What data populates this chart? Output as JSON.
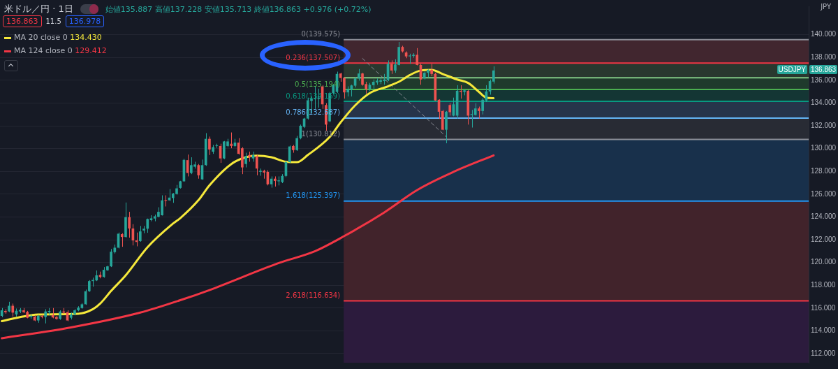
{
  "chart_data": {
    "type": "candlestick",
    "title": "米ドル／円 · 1日",
    "subtitle": "始値135.887 高値137.228 安値135.713 終値136.863 +0.976 (+0.72%)",
    "ylabel": "JPY",
    "annotations": [
      "136.863",
      "11.5",
      "136.978",
      "USDJPY",
      "136.863",
      "134.430",
      "129.412"
    ],
    "categories": [
      null,
      null,
      null,
      null,
      null,
      null,
      null,
      null,
      null,
      null,
      null,
      null,
      null,
      null,
      null,
      null,
      null,
      null,
      null,
      null,
      null,
      null,
      null,
      null,
      null,
      null,
      null,
      null,
      null,
      null,
      null,
      null,
      null,
      null,
      null,
      null,
      null,
      null,
      null,
      null,
      null,
      null,
      null,
      null,
      null,
      null,
      null,
      null,
      null,
      null,
      null,
      null,
      null,
      null,
      null,
      null,
      null,
      null,
      null,
      null,
      null,
      null,
      null,
      null,
      null,
      null,
      null,
      null,
      null,
      null,
      null,
      null,
      null,
      null,
      null,
      null,
      null,
      null,
      null,
      null,
      null,
      null,
      null,
      null,
      null,
      null,
      null,
      null,
      null,
      null,
      null,
      null,
      null,
      null,
      null,
      null,
      null,
      null,
      null,
      null,
      null,
      null,
      null,
      null,
      null,
      null,
      null,
      null,
      null,
      null,
      null,
      null,
      null,
      null,
      null,
      null,
      null,
      null,
      null,
      null,
      null,
      null,
      null,
      null,
      null,
      null,
      null,
      null,
      null,
      null,
      null,
      null,
      null,
      null,
      null,
      null,
      null,
      null,
      null,
      null,
      null,
      null,
      null,
      null,
      null,
      null,
      null,
      null,
      null,
      null,
      null,
      null,
      null,
      null,
      null,
      null,
      null,
      null,
      null,
      null,
      null,
      null,
      null,
      null,
      null,
      null,
      null,
      null,
      null,
      null,
      null,
      null,
      null,
      null,
      null,
      null,
      null,
      null,
      null,
      null,
      null,
      null,
      null,
      null,
      null,
      null,
      null,
      null,
      null,
      null,
      null,
      null,
      null,
      null,
      null,
      null,
      null,
      null,
      null,
      null,
      null,
      null,
      null,
      null,
      null,
      null,
      null,
      null,
      null,
      null,
      null,
      null,
      null,
      null,
      null,
      null,
      null,
      null,
      null,
      null,
      null,
      null
    ],
    "ohlc": [
      [
        115.31,
        116.0,
        115.2,
        115.8
      ],
      [
        115.74,
        115.9,
        115.5,
        115.64
      ],
      [
        115.7,
        116.55,
        115.64,
        116.2
      ],
      [
        116.2,
        116.39,
        115.25,
        115.6
      ],
      [
        115.44,
        115.96,
        115.25,
        115.76
      ],
      [
        115.7,
        116.0,
        115.56,
        115.84
      ],
      [
        115.8,
        116.0,
        115.56,
        115.64
      ],
      [
        115.66,
        115.75,
        115.1,
        115.15
      ],
      [
        115.21,
        115.44,
        115.05,
        115.31
      ],
      [
        115.25,
        115.35,
        114.85,
        114.91
      ],
      [
        114.91,
        115.4,
        114.71,
        115.31
      ],
      [
        115.31,
        115.4,
        115.1,
        115.21
      ],
      [
        115.21,
        115.9,
        114.65,
        115.7
      ],
      [
        115.64,
        116.0,
        115.4,
        115.74
      ],
      [
        115.4,
        116.0,
        115.1,
        115.17
      ],
      [
        115.21,
        115.31,
        114.97,
        115.05
      ],
      [
        115.05,
        115.8,
        114.97,
        115.7
      ],
      [
        115.7,
        116.0,
        115.5,
        115.6
      ],
      [
        115.64,
        115.8,
        114.85,
        114.91
      ],
      [
        115.15,
        115.6,
        115.0,
        115.44
      ],
      [
        115.44,
        115.9,
        115.36,
        115.8
      ],
      [
        115.8,
        116.16,
        115.72,
        116.04
      ],
      [
        116.0,
        116.43,
        115.94,
        116.33
      ],
      [
        116.33,
        117.62,
        116.28,
        117.48
      ],
      [
        117.48,
        118.45,
        117.42,
        118.37
      ],
      [
        118.37,
        118.67,
        117.88,
        118.47
      ],
      [
        118.43,
        119.3,
        118.37,
        118.87
      ],
      [
        118.91,
        119.2,
        118.61,
        118.73
      ],
      [
        118.73,
        119.6,
        118.67,
        119.36
      ],
      [
        119.32,
        119.72,
        119.26,
        119.66
      ],
      [
        119.66,
        121.19,
        119.6,
        120.95
      ],
      [
        120.91,
        121.58,
        120.79,
        121.3
      ],
      [
        121.3,
        122.63,
        121.24,
        122.53
      ],
      [
        122.49,
        122.57,
        121.38,
        122.24
      ],
      [
        122.24,
        125.27,
        122.18,
        123.98
      ],
      [
        123.98,
        124.45,
        122.18,
        122.99
      ],
      [
        122.99,
        123.37,
        121.5,
        121.94
      ],
      [
        121.94,
        122.63,
        121.42,
        121.8
      ],
      [
        121.88,
        123.21,
        121.82,
        122.73
      ],
      [
        122.81,
        123.21,
        122.57,
        122.97
      ],
      [
        122.97,
        123.86,
        122.61,
        123.82
      ],
      [
        123.72,
        124.15,
        123.62,
        123.88
      ],
      [
        123.86,
        124.21,
        123.62,
        124.06
      ],
      [
        124.02,
        124.85,
        123.96,
        124.45
      ],
      [
        124.15,
        125.9,
        124.12,
        125.46
      ],
      [
        125.48,
        125.9,
        124.92,
        125.42
      ],
      [
        125.46,
        126.45,
        125.4,
        125.7
      ],
      [
        125.66,
        126.1,
        125.24,
        126.06
      ],
      [
        126.02,
        126.81,
        125.96,
        126.51
      ],
      [
        126.55,
        127.17,
        126.49,
        127.13
      ],
      [
        127.13,
        129.11,
        127.09,
        129.01
      ],
      [
        128.99,
        129.48,
        127.56,
        127.86
      ],
      [
        127.86,
        129.24,
        127.76,
        128.55
      ],
      [
        128.41,
        128.85,
        128.25,
        128.61
      ],
      [
        128.55,
        128.65,
        127.36,
        127.66
      ],
      [
        127.3,
        129.04,
        127.26,
        128.55
      ],
      [
        128.55,
        131.36,
        128.49,
        130.86
      ],
      [
        130.86,
        131.06,
        129.44,
        129.93
      ],
      [
        129.73,
        130.33,
        129.54,
        130.13
      ],
      [
        130.23,
        130.43,
        130.07,
        130.29
      ],
      [
        130.23,
        130.43,
        128.75,
        129.14
      ],
      [
        129.14,
        130.67,
        129.08,
        130.63
      ],
      [
        130.23,
        130.86,
        130.13,
        130.63
      ],
      [
        130.43,
        131.42,
        130.03,
        130.23
      ],
      [
        130.23,
        130.86,
        130.13,
        130.53
      ],
      [
        130.53,
        130.92,
        129.48,
        129.54
      ],
      [
        130.03,
        130.13,
        127.76,
        128.35
      ],
      [
        128.65,
        129.64,
        128.35,
        129.34
      ],
      [
        129.44,
        129.74,
        128.85,
        129.24
      ],
      [
        129.14,
        129.74,
        128.85,
        129.44
      ],
      [
        129.34,
        129.44,
        127.66,
        128.25
      ],
      [
        127.96,
        128.25,
        127.62,
        128.06
      ],
      [
        128.06,
        128.15,
        127.36,
        127.9
      ],
      [
        127.96,
        128.1,
        126.77,
        126.87
      ],
      [
        126.87,
        127.56,
        126.57,
        127.36
      ],
      [
        127.36,
        127.56,
        126.67,
        127.16
      ],
      [
        127.13,
        127.56,
        126.77,
        127.21
      ],
      [
        127.07,
        127.76,
        126.97,
        127.6
      ],
      [
        127.6,
        128.95,
        127.5,
        128.81
      ],
      [
        128.81,
        130.27,
        128.75,
        130.19
      ],
      [
        130.23,
        130.33,
        129.64,
        129.87
      ],
      [
        129.87,
        131.12,
        129.8,
        130.92
      ],
      [
        130.92,
        132.11,
        130.82,
        132.01
      ],
      [
        131.91,
        132.7,
        131.81,
        132.64
      ],
      [
        132.64,
        134.48,
        132.56,
        134.25
      ],
      [
        134.19,
        134.58,
        133.1,
        134.38
      ],
      [
        134.34,
        135.47,
        133.49,
        134.42
      ],
      [
        134.38,
        135.27,
        133.59,
        134.48
      ],
      [
        135.47,
        135.57,
        133.49,
        133.89
      ],
      [
        133.83,
        133.99,
        131.58,
        132.11
      ],
      [
        132.4,
        134.98,
        132.31,
        134.88
      ],
      [
        134.88,
        135.67,
        134.78,
        135.57
      ],
      [
        134.98,
        136.76,
        134.88,
        136.56
      ],
      [
        136.6,
        136.66,
        135.87,
        136.2
      ],
      [
        136.2,
        136.26,
        134.39,
        134.94
      ],
      [
        134.94,
        135.47,
        134.58,
        135.22
      ],
      [
        135.18,
        135.61,
        134.58,
        135.55
      ],
      [
        135.53,
        136.26,
        135.37,
        136.16
      ],
      [
        136.16,
        136.99,
        135.97,
        136.6
      ],
      [
        136.6,
        136.66,
        135.53,
        135.61
      ],
      [
        135.67,
        135.87,
        134.82,
        135.22
      ],
      [
        135.22,
        135.77,
        135.08,
        135.61
      ],
      [
        135.57,
        136.07,
        135.27,
        135.87
      ],
      [
        135.81,
        136.16,
        135.61,
        135.97
      ],
      [
        135.87,
        136.26,
        135.67,
        136.01
      ],
      [
        135.93,
        136.56,
        135.61,
        136.07
      ],
      [
        136.01,
        137.75,
        135.93,
        137.45
      ],
      [
        137.45,
        137.75,
        136.56,
        136.86
      ],
      [
        136.86,
        137.84,
        136.66,
        137.39
      ],
      [
        137.35,
        139.37,
        137.31,
        138.93
      ],
      [
        138.93,
        139.03,
        138.44,
        138.54
      ],
      [
        138.44,
        138.54,
        137.94,
        138.1
      ],
      [
        138.1,
        138.34,
        137.45,
        138.18
      ],
      [
        138.14,
        138.38,
        137.98,
        138.24
      ],
      [
        138.24,
        138.83,
        137.31,
        137.35
      ],
      [
        137.35,
        137.45,
        135.61,
        136.07
      ],
      [
        136.16,
        136.76,
        136.07,
        136.66
      ],
      [
        136.66,
        136.96,
        136.26,
        136.92
      ],
      [
        136.92,
        137.45,
        136.36,
        136.56
      ],
      [
        136.56,
        136.66,
        134.19,
        134.23
      ],
      [
        134.29,
        134.33,
        132.61,
        133.24
      ],
      [
        133.3,
        133.4,
        131.62,
        131.66
      ],
      [
        131.66,
        133.3,
        130.47,
        133.24
      ],
      [
        133.83,
        133.99,
        132.9,
        133.2
      ],
      [
        132.9,
        134.48,
        132.84,
        133.89
      ],
      [
        132.9,
        135.57,
        132.64,
        135.08
      ],
      [
        135.08,
        135.57,
        134.39,
        134.98
      ],
      [
        134.98,
        135.18,
        134.68,
        135.12
      ],
      [
        135.08,
        135.18,
        132.11,
        132.9
      ],
      [
        132.96,
        133.4,
        131.85,
        133.04
      ],
      [
        132.96,
        133.99,
        132.9,
        133.53
      ],
      [
        133.53,
        133.69,
        132.64,
        133.3
      ],
      [
        133.3,
        134.43,
        133.0,
        134.29
      ],
      [
        134.23,
        135.57,
        134.09,
        135.02
      ],
      [
        135.02,
        136.07,
        134.74,
        135.93
      ],
      [
        135.887,
        137.228,
        135.713,
        136.863
      ],
      null,
      null,
      null,
      null,
      null,
      null,
      null,
      null,
      null,
      null,
      null,
      null,
      null,
      null,
      null,
      null,
      null,
      null,
      null,
      null,
      null,
      null,
      null,
      null,
      null,
      null,
      null,
      null,
      null,
      null,
      null,
      null,
      null,
      null,
      null,
      null,
      null,
      null,
      null,
      null,
      null,
      null,
      null,
      null,
      null,
      null,
      null,
      null,
      null,
      null,
      null,
      null,
      null,
      null,
      null,
      null,
      null,
      null,
      null,
      null,
      null,
      null,
      null,
      null,
      null,
      null,
      null,
      null,
      null,
      null,
      null,
      null,
      null,
      null,
      null,
      null,
      null,
      null,
      null,
      null,
      null,
      null,
      null,
      null,
      null,
      null
    ],
    "series": [
      {
        "name": "MA 20 close 0",
        "type": "line",
        "color": "#f5e83b",
        "values": [
          114.85,
          null,
          null,
          null,
          null,
          115.2,
          null,
          null,
          null,
          null,
          115.44,
          null,
          null,
          null,
          null,
          null,
          null,
          null,
          null,
          null,
          null,
          115.5,
          null,
          null,
          null,
          115.9,
          null,
          116.39,
          null,
          null,
          117.5,
          null,
          null,
          null,
          118.87,
          null,
          null,
          null,
          null,
          null,
          121.34,
          null,
          null,
          null,
          null,
          null,
          null,
          123.42,
          null,
          123.9,
          null,
          null,
          null,
          null,
          125.48,
          null,
          null,
          126.77,
          null,
          null,
          null,
          null,
          null,
          128.65,
          null,
          null,
          null,
          129.24,
          null,
          null,
          129.38,
          null,
          null,
          null,
          129.24,
          null,
          null,
          null,
          128.85,
          null,
          null,
          128.81,
          null,
          null,
          129.44,
          null,
          null,
          null,
          null,
          null,
          131.02,
          null,
          null,
          132.3,
          null,
          null,
          null,
          133.8,
          null,
          null,
          null,
          134.88,
          null,
          null,
          null,
          null,
          135.47,
          null,
          null,
          135.87,
          null,
          null,
          136.46,
          null,
          null,
          136.86,
          null,
          null,
          136.92,
          null,
          null,
          136.56,
          null,
          null,
          null,
          136.07,
          null,
          null,
          135.77,
          null,
          null,
          134.98,
          null,
          134.48,
          null,
          134.43,
          null,
          null,
          null,
          null,
          null,
          null,
          null,
          null,
          null,
          null,
          null,
          null,
          null,
          null,
          null,
          null,
          null,
          null,
          null,
          null,
          null,
          null,
          null,
          null,
          null,
          null,
          null,
          null,
          null,
          null,
          null,
          null,
          null,
          null,
          null,
          null,
          null,
          null,
          null,
          null,
          null,
          null,
          null,
          null,
          null,
          null,
          null,
          null,
          null,
          null,
          null,
          null,
          null,
          null,
          null,
          null,
          null,
          null,
          null,
          null,
          null,
          null,
          null,
          null,
          null,
          null,
          null,
          null,
          null,
          null,
          null,
          null,
          null,
          null,
          null,
          null,
          null,
          null,
          null,
          null,
          null,
          null,
          null,
          null,
          null,
          null
        ]
      },
      {
        "name": "MA 124 close 0",
        "type": "line",
        "color": "#f23645",
        "values": [
          113.35,
          null,
          null,
          null,
          null,
          null,
          null,
          null,
          null,
          null,
          null,
          null,
          null,
          null,
          null,
          null,
          null,
          null,
          null,
          114.3,
          null,
          null,
          null,
          null,
          null,
          null,
          null,
          null,
          null,
          null,
          null,
          null,
          null,
          null,
          null,
          null,
          null,
          null,
          115.6,
          null,
          null,
          null,
          null,
          null,
          null,
          null,
          null,
          null,
          null,
          116.69,
          null,
          null,
          null,
          null,
          null,
          null,
          null,
          117.58,
          null,
          null,
          null,
          null,
          null,
          null,
          null,
          null,
          null,
          null,
          null,
          null,
          null,
          null,
          null,
          null,
          null,
          null,
          119.95,
          null,
          null,
          null,
          null,
          null,
          null,
          null,
          null,
          null,
          121.0,
          null,
          null,
          null,
          null,
          null,
          null,
          null,
          122.32,
          null,
          null,
          null,
          null,
          null,
          null,
          null,
          null,
          null,
          null,
          124.4,
          null,
          null,
          null,
          null,
          null,
          null,
          null,
          null,
          126.36,
          null,
          null,
          null,
          null,
          null,
          null,
          null,
          null,
          null,
          127.96,
          null,
          null,
          null,
          null,
          null,
          null,
          null,
          null,
          null,
          null,
          129.41,
          null,
          null,
          null,
          null,
          null,
          null,
          null,
          null,
          null,
          null,
          null,
          null,
          null,
          null,
          null,
          null,
          null,
          null,
          null,
          null,
          null,
          null,
          null,
          null,
          null,
          null,
          null,
          null,
          null,
          null,
          null,
          null,
          null,
          null,
          null,
          null,
          null,
          null,
          null,
          null,
          null,
          null,
          null,
          null,
          null,
          null,
          null,
          null,
          null,
          null,
          null,
          null,
          null,
          null,
          null,
          null,
          null,
          null,
          null,
          null,
          null,
          null,
          null,
          null,
          null,
          null,
          null,
          null,
          null,
          null,
          null,
          null,
          null,
          null,
          null,
          null,
          null,
          null,
          null,
          null,
          null,
          null,
          null,
          null,
          null,
          null
        ]
      },
      {
        "type": "line",
        "color": "#8a8d96",
        "line_style": "dashed",
        "values": [
          null,
          null,
          null,
          null,
          null,
          null,
          null,
          null,
          null,
          null,
          null,
          null,
          null,
          null,
          null,
          null,
          null,
          null,
          null,
          null,
          null,
          null,
          null,
          null,
          null,
          null,
          null,
          null,
          null,
          null,
          null,
          null,
          null,
          null,
          null,
          null,
          null,
          null,
          null,
          null,
          null,
          null,
          null,
          null,
          null,
          null,
          null,
          null,
          null,
          null,
          null,
          null,
          null,
          null,
          null,
          null,
          null,
          null,
          null,
          null,
          null,
          null,
          null,
          null,
          null,
          null,
          null,
          null,
          null,
          null,
          null,
          null,
          null,
          null,
          null,
          null,
          null,
          null,
          null,
          null,
          null,
          null,
          null,
          null,
          null,
          null,
          null,
          null,
          null,
          null,
          null,
          null,
          null,
          null,
          null,
          null,
          null,
          null,
          null,
          137.92,
          null,
          null,
          null,
          null,
          null,
          null,
          null,
          null,
          null,
          null,
          null,
          null,
          null,
          null,
          null,
          null,
          null,
          null,
          null,
          null,
          null,
          null,
          131.04,
          null,
          null,
          null,
          null,
          null,
          null,
          null,
          null,
          null,
          null,
          null,
          null,
          null,
          null,
          null,
          null,
          null,
          null,
          null,
          null,
          null,
          null,
          null,
          null,
          null,
          null,
          null,
          null,
          null,
          null,
          null,
          null,
          null,
          null,
          null,
          null,
          null,
          null,
          null,
          null,
          null,
          null,
          null,
          null,
          null,
          null,
          null,
          null,
          null,
          null,
          null,
          null,
          null,
          null,
          null,
          null,
          null,
          null,
          null,
          null,
          null,
          null,
          null,
          null,
          null,
          null,
          null,
          null,
          null,
          null,
          null,
          null,
          null,
          null,
          null,
          null,
          null,
          null,
          null,
          null,
          null,
          null,
          null,
          null,
          null,
          null,
          null,
          null,
          null,
          null,
          null,
          null,
          null,
          null,
          null,
          null,
          null,
          null,
          null
        ]
      }
    ],
    "ylim": [
      111.2,
      142.5
    ],
    "yticks": [
      {
        "value": 112,
        "label": "112.000"
      },
      {
        "value": 114,
        "label": "114.000"
      },
      {
        "value": 116,
        "label": "116.000"
      },
      {
        "value": 118,
        "label": "118.000"
      },
      {
        "value": 120,
        "label": "120.000"
      },
      {
        "value": 122,
        "label": "122.000"
      },
      {
        "value": 124,
        "label": "124.000"
      },
      {
        "value": 126,
        "label": "126.000"
      },
      {
        "value": 128,
        "label": "128.000"
      },
      {
        "value": 130,
        "label": "130.000"
      },
      {
        "value": 132,
        "label": "132.000"
      },
      {
        "value": 134,
        "label": "134.000"
      },
      {
        "value": 136,
        "label": "136.000"
      },
      {
        "value": 138,
        "label": "138.000"
      },
      {
        "value": 140,
        "label": "140.000"
      }
    ],
    "ref_lines": [
      {
        "axis": "y",
        "value": 139.575,
        "label": "0(139.575)",
        "color": "#8a8d96"
      },
      {
        "axis": "y",
        "value": 137.507,
        "label": "0.236(137.507)",
        "color": "#f23645"
      },
      {
        "axis": "y",
        "value": 136.228,
        "label": null,
        "color": "#81c784"
      },
      {
        "axis": "y",
        "value": 135.194,
        "label": "0.5(135.194)",
        "color": "#4caf50"
      },
      {
        "axis": "y",
        "value": 134.159,
        "label": "0.618(134.159)",
        "color": "#089981"
      },
      {
        "axis": "y",
        "value": 132.687,
        "label": "0.786(132.687)",
        "color": "#64b5f6"
      },
      {
        "axis": "y",
        "value": 130.812,
        "label": "1(130.812)",
        "color": "#8a8d96"
      },
      {
        "axis": "y",
        "value": 125.397,
        "label": "1.618(125.397)",
        "color": "#2196f3"
      },
      {
        "axis": "y",
        "value": 116.634,
        "label": "2.618(116.634)",
        "color": "#f23645"
      }
    ],
    "bands": [
      {
        "axis": "y",
        "from": 137.507,
        "to": 139.575,
        "color": "#41262f"
      },
      {
        "axis": "y",
        "from": 136.228,
        "to": 137.507,
        "color": "#29382f"
      },
      {
        "axis": "y",
        "from": 135.194,
        "to": 136.228,
        "color": "#1f3a2c"
      },
      {
        "axis": "y",
        "from": 134.159,
        "to": 135.194,
        "color": "#143634"
      },
      {
        "axis": "y",
        "from": 132.687,
        "to": 134.159,
        "color": "#26344a"
      },
      {
        "axis": "y",
        "from": 130.812,
        "to": 132.687,
        "color": "#282b34"
      },
      {
        "axis": "y",
        "from": 125.397,
        "to": 130.812,
        "color": "#18304b"
      },
      {
        "axis": "y",
        "from": 116.634,
        "to": 125.397,
        "color": "#41232b"
      },
      {
        "axis": "y",
        "from": 111.2,
        "to": 116.634,
        "color": "#2c1b3d"
      }
    ],
    "grid": "y",
    "tick_labels": "y",
    "legend": "top left",
    "marker": "none"
  }
}
